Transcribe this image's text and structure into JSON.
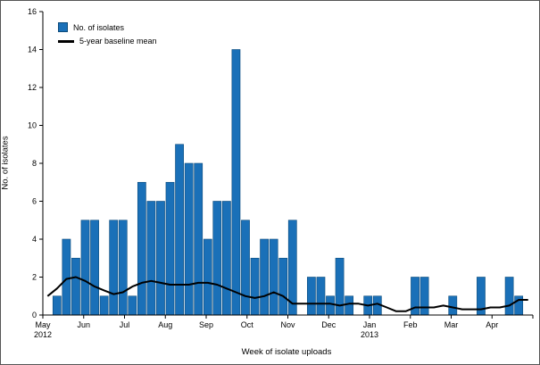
{
  "chart_data": {
    "type": "bar",
    "xlabel": "Week of isolate uploads",
    "ylabel": "No. of isolates",
    "ylim": [
      0,
      16
    ],
    "ytick_step": 2,
    "grid": false,
    "legend_position": "top-left-inside",
    "legend": [
      "No. of isolates",
      "5-year baseline mean"
    ],
    "months": [
      "May",
      "Jun",
      "Jul",
      "Aug",
      "Sep",
      "Oct",
      "Nov",
      "Dec",
      "Jan",
      "Feb",
      "Mar",
      "Apr"
    ],
    "years": [
      {
        "label": "2012",
        "month_index": 0
      },
      {
        "label": "2013",
        "month_index": 8
      }
    ],
    "x_unit": "week",
    "weeks_total": 52,
    "bar_color": "#1a70b8",
    "bar_edge_color": "#0b4a7a",
    "line_color": "#000000",
    "series": [
      {
        "name": "No. of isolates",
        "type": "bar",
        "values": [
          0,
          1,
          4,
          3,
          5,
          5,
          1,
          5,
          5,
          1,
          7,
          6,
          6,
          7,
          9,
          8,
          8,
          4,
          6,
          6,
          14,
          5,
          3,
          4,
          4,
          3,
          5,
          0,
          2,
          2,
          1,
          3,
          1,
          0,
          1,
          1,
          0,
          0,
          0,
          2,
          2,
          0,
          0,
          1,
          0,
          0,
          2,
          0,
          0,
          2,
          1,
          0
        ]
      },
      {
        "name": "5-year baseline mean",
        "type": "line",
        "values": [
          1.0,
          1.4,
          1.9,
          2.0,
          1.8,
          1.5,
          1.3,
          1.1,
          1.2,
          1.5,
          1.7,
          1.8,
          1.7,
          1.6,
          1.6,
          1.6,
          1.7,
          1.7,
          1.6,
          1.4,
          1.2,
          1.0,
          0.9,
          1.0,
          1.2,
          1.0,
          0.6,
          0.6,
          0.6,
          0.6,
          0.6,
          0.5,
          0.6,
          0.6,
          0.5,
          0.6,
          0.4,
          0.2,
          0.2,
          0.4,
          0.4,
          0.4,
          0.5,
          0.4,
          0.3,
          0.3,
          0.3,
          0.4,
          0.4,
          0.5,
          0.8,
          0.8
        ]
      }
    ]
  }
}
